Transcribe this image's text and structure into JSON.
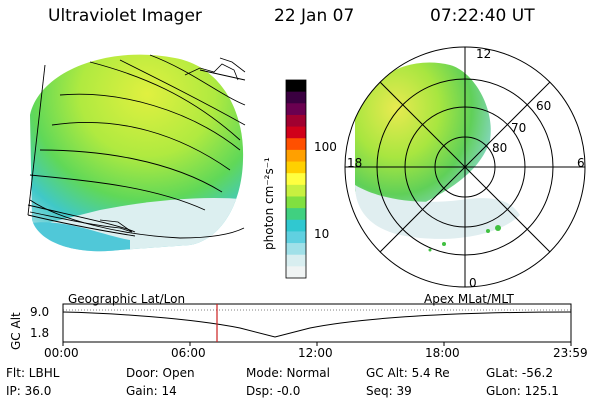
{
  "header": {
    "instrument": "Ultraviolet Imager",
    "date": "22 Jan 07",
    "time": "07:22:40 UT"
  },
  "colorbar": {
    "unit_label": "photon cm⁻²s⁻¹",
    "ticks": [
      "100",
      "10"
    ],
    "colors": [
      "#000000",
      "#3a0040",
      "#6a0050",
      "#a00030",
      "#d0001a",
      "#ff5000",
      "#ffa000",
      "#ffd000",
      "#ffff40",
      "#c8f040",
      "#80e040",
      "#40d080",
      "#30c8d0",
      "#60d0e0",
      "#a0e0e8",
      "#d8eef0",
      "#f0f4f4"
    ]
  },
  "polar": {
    "ring_labels": [
      "60",
      "70",
      "80"
    ],
    "mlt_labels": {
      "top": "12",
      "left": "18",
      "right": "6",
      "bottom": "0"
    }
  },
  "timeline": {
    "left_label": "Geographic Lat/Lon",
    "right_label": "Apex MLat/MLT",
    "axis_title": "GC Alt",
    "y_ticks": [
      "9.0",
      "1.8"
    ],
    "x_ticks": [
      "00:00",
      "06:00",
      "12:00",
      "18:00",
      "23:59"
    ],
    "marker_color": "#cc2020"
  },
  "info": {
    "flt": "Flt: LBHL",
    "ip": "IP: 36.0",
    "door": "Door: Open",
    "gain": "Gain: 14",
    "mode": "Mode: Normal",
    "dsp": "Dsp:    -0.0",
    "gcalt": "GC Alt: 5.4 Re",
    "seq": "Seq: 39",
    "glat": "GLat: -56.2",
    "glon": "GLon: 125.1"
  }
}
